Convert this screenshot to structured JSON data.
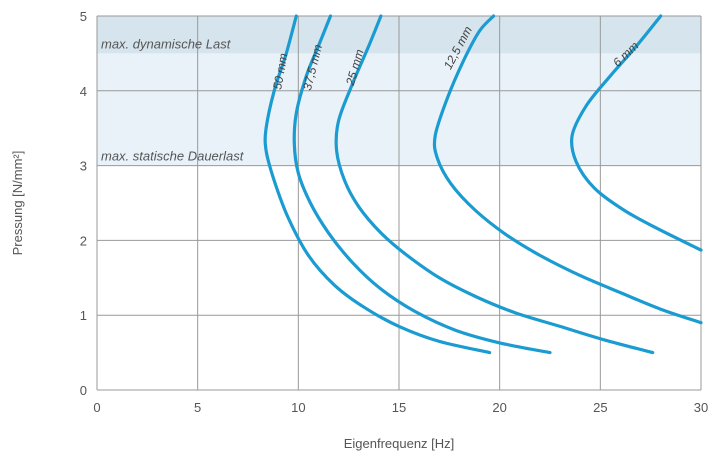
{
  "chart_data": {
    "type": "line",
    "xlabel": "Eigenfrequenz [Hz]",
    "ylabel": "Pressung [N/mm²]",
    "xlim": [
      0,
      30
    ],
    "ylim": [
      0,
      5
    ],
    "x_ticks": [
      0,
      5,
      10,
      15,
      20,
      25,
      30
    ],
    "y_ticks": [
      0,
      1,
      2,
      3,
      4,
      5
    ],
    "grid": true,
    "colors": {
      "curve": "#1a9bd1",
      "band_dynamic": "#d6e4ee",
      "band_static": "#e9f2f8",
      "grid": "#999999"
    },
    "bands": [
      {
        "label": "max. dynamische Last",
        "y_from": 4.5,
        "y_to": 5.0
      },
      {
        "label": "max. statische Dauerlast",
        "y_from": 3.0,
        "y_to": 4.5
      }
    ],
    "series": [
      {
        "name": "50 mm",
        "points": [
          [
            9.9,
            5.0
          ],
          [
            9.4,
            4.5
          ],
          [
            8.8,
            4.0
          ],
          [
            8.4,
            3.5
          ],
          [
            8.4,
            3.2
          ],
          [
            8.8,
            2.8
          ],
          [
            9.5,
            2.3
          ],
          [
            10.5,
            1.8
          ],
          [
            11.8,
            1.4
          ],
          [
            13.3,
            1.1
          ],
          [
            15.0,
            0.85
          ],
          [
            17.0,
            0.65
          ],
          [
            19.5,
            0.5
          ]
        ]
      },
      {
        "name": "37,5 mm",
        "points": [
          [
            11.6,
            5.0
          ],
          [
            11.0,
            4.6
          ],
          [
            10.4,
            4.2
          ],
          [
            9.9,
            3.7
          ],
          [
            9.8,
            3.3
          ],
          [
            10.0,
            2.9
          ],
          [
            10.6,
            2.5
          ],
          [
            11.5,
            2.1
          ],
          [
            12.7,
            1.7
          ],
          [
            14.1,
            1.35
          ],
          [
            15.8,
            1.05
          ],
          [
            17.8,
            0.8
          ],
          [
            20.0,
            0.63
          ],
          [
            22.5,
            0.5
          ]
        ]
      },
      {
        "name": "25 mm",
        "points": [
          [
            14.1,
            5.0
          ],
          [
            13.5,
            4.6
          ],
          [
            12.7,
            4.1
          ],
          [
            12.0,
            3.6
          ],
          [
            11.9,
            3.2
          ],
          [
            12.3,
            2.8
          ],
          [
            13.0,
            2.45
          ],
          [
            14.1,
            2.1
          ],
          [
            15.4,
            1.8
          ],
          [
            17.0,
            1.5
          ],
          [
            18.8,
            1.25
          ],
          [
            20.8,
            1.03
          ],
          [
            23.0,
            0.85
          ],
          [
            25.2,
            0.67
          ],
          [
            27.6,
            0.5
          ]
        ]
      },
      {
        "name": "12,5 mm",
        "points": [
          [
            19.7,
            5.0
          ],
          [
            19.0,
            4.8
          ],
          [
            18.2,
            4.4
          ],
          [
            17.4,
            3.9
          ],
          [
            16.8,
            3.4
          ],
          [
            16.9,
            3.1
          ],
          [
            17.6,
            2.75
          ],
          [
            18.8,
            2.4
          ],
          [
            20.3,
            2.08
          ],
          [
            22.0,
            1.8
          ],
          [
            24.0,
            1.53
          ],
          [
            26.1,
            1.29
          ],
          [
            28.0,
            1.08
          ],
          [
            30.0,
            0.9
          ]
        ]
      },
      {
        "name": "6 mm",
        "points": [
          [
            28.0,
            5.0
          ],
          [
            26.8,
            4.6
          ],
          [
            25.5,
            4.2
          ],
          [
            24.3,
            3.8
          ],
          [
            23.6,
            3.4
          ],
          [
            23.8,
            3.05
          ],
          [
            24.7,
            2.7
          ],
          [
            26.2,
            2.4
          ],
          [
            27.9,
            2.15
          ],
          [
            30.0,
            1.87
          ]
        ]
      }
    ]
  }
}
